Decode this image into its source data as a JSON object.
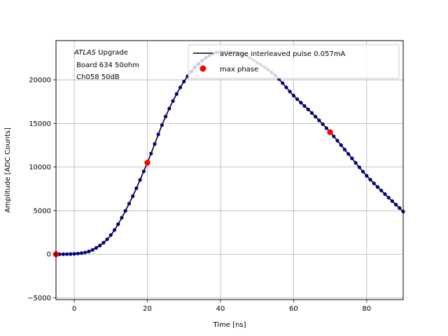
{
  "chart_data": {
    "type": "scatter",
    "xlabel": "Time [ns]",
    "ylabel": "Amplitude [ADC Counts]",
    "xlim": [
      -5,
      90
    ],
    "ylim": [
      -5200,
      24500
    ],
    "x_ticks": [
      0,
      20,
      40,
      60,
      80
    ],
    "y_ticks": [
      -5000,
      0,
      5000,
      10000,
      15000,
      20000
    ],
    "grid": true,
    "annotation": {
      "italic": "ATLAS",
      "line1_rest": " Upgrade",
      "line2": " Board 634 50ohm",
      "line3": " Ch058 50dB"
    },
    "legend": {
      "placement": "top-right",
      "entries": [
        {
          "label": "average interleaved pulse 0.057mA",
          "marker": "line",
          "color": "#000000"
        },
        {
          "label": "max phase",
          "marker": "dot",
          "color": "#ff0000"
        }
      ]
    },
    "series": [
      {
        "name": "average interleaved pulse 0.057mA",
        "style": "line",
        "color": "#000000",
        "x": [
          -5,
          0,
          5,
          10,
          15,
          20,
          25,
          30,
          35,
          40,
          45,
          50,
          55,
          60,
          65,
          70,
          75,
          80,
          85,
          90
        ],
        "y": [
          0,
          50,
          500,
          2200,
          5800,
          10500,
          15800,
          19800,
          22200,
          23200,
          23100,
          22000,
          20500,
          18200,
          16200,
          14000,
          11500,
          9000,
          6900,
          4900
        ]
      },
      {
        "style": "points",
        "color": "#00008b",
        "x": [
          -5,
          0,
          5,
          10,
          15,
          20,
          25,
          30,
          35,
          40,
          45,
          50,
          55,
          60,
          65,
          70,
          75,
          80,
          85,
          90
        ],
        "y": [
          0,
          50,
          500,
          2200,
          5800,
          10500,
          15800,
          19800,
          22200,
          23200,
          23100,
          22000,
          20500,
          18200,
          16200,
          14000,
          11500,
          9000,
          6900,
          4900
        ],
        "step": 1,
        "faded_x_range": [
          35,
          58
        ]
      },
      {
        "name": "max phase",
        "style": "dots",
        "color": "#ff0000",
        "x": [
          -5,
          20,
          45,
          70
        ],
        "y": [
          0,
          10500,
          23100,
          14000
        ]
      }
    ]
  },
  "colors": {
    "grid": "#b0b0b0",
    "axis": "#000000",
    "legend_border": "#cccccc"
  }
}
